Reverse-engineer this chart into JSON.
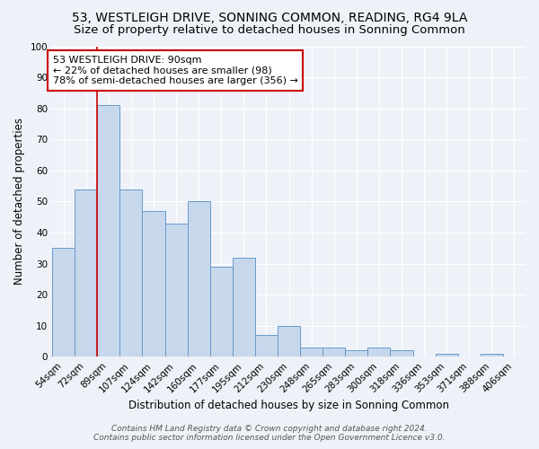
{
  "title": "53, WESTLEIGH DRIVE, SONNING COMMON, READING, RG4 9LA",
  "subtitle": "Size of property relative to detached houses in Sonning Common",
  "xlabel": "Distribution of detached houses by size in Sonning Common",
  "ylabel": "Number of detached properties",
  "bar_color": "#c8d8ec",
  "bar_edge_color": "#6699cc",
  "bin_labels": [
    "54sqm",
    "72sqm",
    "89sqm",
    "107sqm",
    "124sqm",
    "142sqm",
    "160sqm",
    "177sqm",
    "195sqm",
    "212sqm",
    "230sqm",
    "248sqm",
    "265sqm",
    "283sqm",
    "300sqm",
    "318sqm",
    "336sqm",
    "353sqm",
    "371sqm",
    "388sqm",
    "406sqm"
  ],
  "bar_heights": [
    35,
    54,
    81,
    54,
    47,
    43,
    50,
    29,
    32,
    7,
    10,
    3,
    3,
    2,
    3,
    2,
    0,
    1,
    0,
    1,
    0
  ],
  "ylim": [
    0,
    100
  ],
  "yticks": [
    0,
    10,
    20,
    30,
    40,
    50,
    60,
    70,
    80,
    90,
    100
  ],
  "vline_x_index": 2,
  "vline_color": "#cc0000",
  "annotation_text": "53 WESTLEIGH DRIVE: 90sqm\n← 22% of detached houses are smaller (98)\n78% of semi-detached houses are larger (356) →",
  "annotation_box_color": "#ffffff",
  "annotation_box_edge": "#cc0000",
  "footer_line1": "Contains HM Land Registry data © Crown copyright and database right 2024.",
  "footer_line2": "Contains public sector information licensed under the Open Government Licence v3.0.",
  "background_color": "#eef2f8",
  "grid_color": "#ffffff",
  "title_fontsize": 10,
  "subtitle_fontsize": 9.5,
  "axis_label_fontsize": 8.5,
  "tick_fontsize": 7.5,
  "annotation_fontsize": 8,
  "footer_fontsize": 6.5
}
